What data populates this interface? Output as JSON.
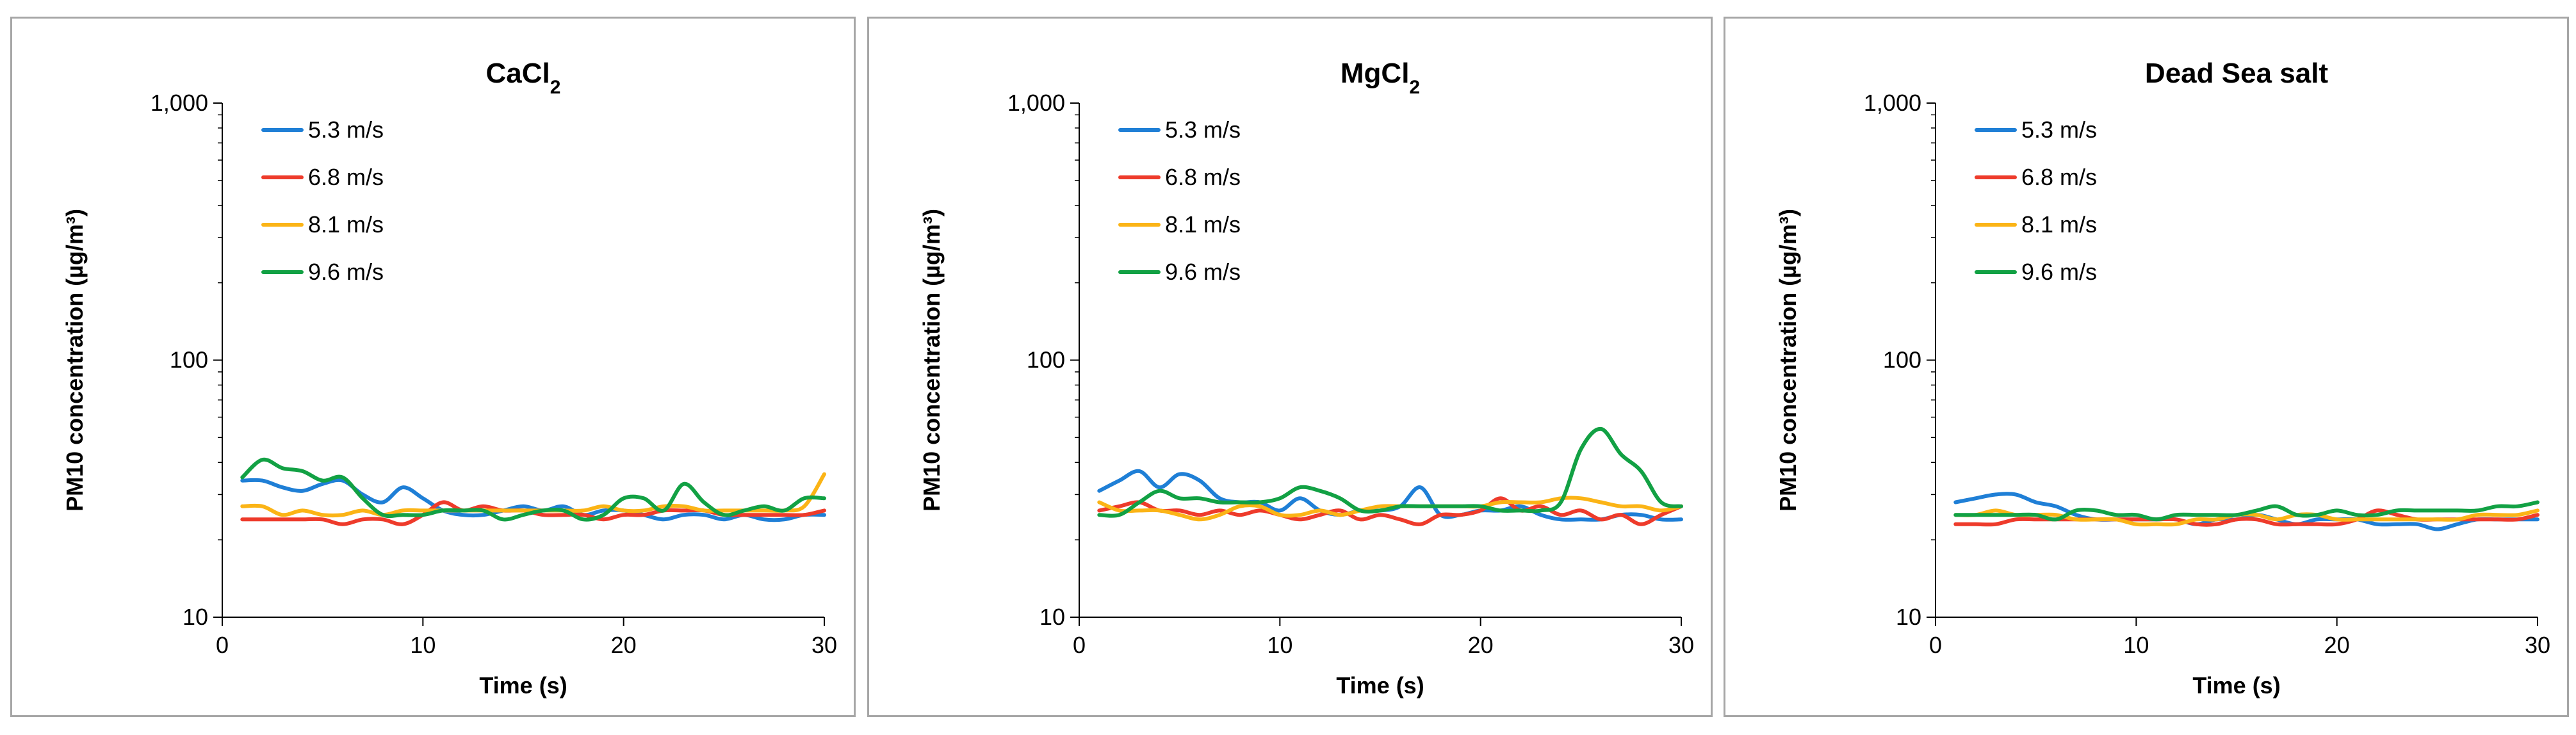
{
  "chart_data": [
    {
      "type": "line",
      "title": "CaCl",
      "title_subscript": "2",
      "xlabel": "Time (s)",
      "ylabel": "PM10 concentration (µg/m³)",
      "yscale": "log",
      "xlim": [
        0,
        30
      ],
      "ylim": [
        10,
        1000
      ],
      "xticks": [
        0,
        10,
        20,
        30
      ],
      "xtick_labels": [
        "0",
        "10",
        "20",
        "30"
      ],
      "yticks": [
        10,
        100,
        1000
      ],
      "ytick_labels": [
        "10",
        "100",
        "1,000"
      ],
      "legend_position": "top-left",
      "grid": false,
      "x": [
        1,
        2,
        3,
        4,
        5,
        6,
        7,
        8,
        9,
        10,
        11,
        12,
        13,
        14,
        15,
        16,
        17,
        18,
        19,
        20,
        21,
        22,
        23,
        24,
        25,
        26,
        27,
        28,
        29,
        30
      ],
      "series": [
        {
          "name": "5.3 m/s",
          "color": "#1f7fd6",
          "values": [
            34,
            34,
            32,
            31,
            33,
            34,
            30,
            28,
            32,
            29,
            26,
            25,
            25,
            26,
            27,
            26,
            27,
            25,
            26,
            26,
            25,
            24,
            25,
            25,
            24,
            25,
            24,
            24,
            25,
            25
          ]
        },
        {
          "name": "6.8 m/s",
          "color": "#ee3b2b",
          "values": [
            24,
            24,
            24,
            24,
            24,
            23,
            24,
            24,
            23,
            25,
            28,
            26,
            27,
            26,
            26,
            25,
            25,
            25,
            24,
            25,
            25,
            26,
            26,
            26,
            25,
            25,
            25,
            25,
            25,
            26
          ]
        },
        {
          "name": "8.1 m/s",
          "color": "#fbb416",
          "values": [
            27,
            27,
            25,
            26,
            25,
            25,
            26,
            25,
            26,
            26,
            26,
            26,
            26,
            26,
            26,
            26,
            26,
            26,
            27,
            26,
            26,
            27,
            27,
            26,
            26,
            26,
            26,
            26,
            27,
            36
          ]
        },
        {
          "name": "9.6 m/s",
          "color": "#12a144",
          "values": [
            35,
            41,
            38,
            37,
            34,
            35,
            29,
            25,
            25,
            25,
            26,
            26,
            26,
            24,
            25,
            26,
            26,
            24,
            25,
            29,
            29,
            26,
            33,
            28,
            25,
            26,
            27,
            26,
            29,
            29
          ]
        }
      ]
    },
    {
      "type": "line",
      "title": "MgCl",
      "title_subscript": "2",
      "xlabel": "Time (s)",
      "ylabel": "PM10 concentration (µg/m³)",
      "yscale": "log",
      "xlim": [
        0,
        30
      ],
      "ylim": [
        10,
        1000
      ],
      "xticks": [
        0,
        10,
        20,
        30
      ],
      "xtick_labels": [
        "0",
        "10",
        "20",
        "30"
      ],
      "yticks": [
        10,
        100,
        1000
      ],
      "ytick_labels": [
        "10",
        "100",
        "1,000"
      ],
      "legend_position": "top-left",
      "grid": false,
      "x": [
        1,
        2,
        3,
        4,
        5,
        6,
        7,
        8,
        9,
        10,
        11,
        12,
        13,
        14,
        15,
        16,
        17,
        18,
        19,
        20,
        21,
        22,
        23,
        24,
        25,
        26,
        27,
        28,
        29,
        30
      ],
      "series": [
        {
          "name": "5.3 m/s",
          "color": "#1f7fd6",
          "values": [
            31,
            34,
            37,
            32,
            36,
            34,
            29,
            28,
            28,
            26,
            29,
            26,
            25,
            26,
            26,
            27,
            32,
            25,
            25,
            26,
            26,
            27,
            25,
            24,
            24,
            24,
            25,
            25,
            24,
            24
          ]
        },
        {
          "name": "6.8 m/s",
          "color": "#ee3b2b",
          "values": [
            26,
            27,
            28,
            26,
            26,
            25,
            26,
            25,
            26,
            25,
            24,
            25,
            26,
            24,
            25,
            24,
            23,
            25,
            25,
            26,
            29,
            26,
            27,
            25,
            26,
            24,
            25,
            23,
            25,
            27
          ]
        },
        {
          "name": "8.1 m/s",
          "color": "#fbb416",
          "values": [
            28,
            26,
            26,
            26,
            25,
            24,
            25,
            27,
            27,
            25,
            25,
            26,
            25,
            26,
            27,
            27,
            27,
            27,
            27,
            27,
            28,
            28,
            28,
            29,
            29,
            28,
            27,
            27,
            26,
            27
          ]
        },
        {
          "name": "9.6 m/s",
          "color": "#12a144",
          "values": [
            25,
            25,
            28,
            31,
            29,
            29,
            28,
            28,
            28,
            29,
            32,
            31,
            29,
            26,
            26,
            27,
            27,
            27,
            27,
            27,
            26,
            26,
            26,
            28,
            45,
            54,
            43,
            37,
            28,
            27
          ]
        }
      ]
    },
    {
      "type": "line",
      "title": "Dead Sea salt",
      "title_subscript": "",
      "xlabel": "Time (s)",
      "ylabel": "PM10 concentration (µg/m³)",
      "yscale": "log",
      "xlim": [
        0,
        30
      ],
      "ylim": [
        10,
        1000
      ],
      "xticks": [
        0,
        10,
        20,
        30
      ],
      "xtick_labels": [
        "0",
        "10",
        "20",
        "30"
      ],
      "yticks": [
        10,
        100,
        1000
      ],
      "ytick_labels": [
        "10",
        "100",
        "1,000"
      ],
      "legend_position": "top-left",
      "grid": false,
      "x": [
        1,
        2,
        3,
        4,
        5,
        6,
        7,
        8,
        9,
        10,
        11,
        12,
        13,
        14,
        15,
        16,
        17,
        18,
        19,
        20,
        21,
        22,
        23,
        24,
        25,
        26,
        27,
        28,
        29,
        30
      ],
      "series": [
        {
          "name": "5.3 m/s",
          "color": "#1f7fd6",
          "values": [
            28,
            29,
            30,
            30,
            28,
            27,
            25,
            24,
            24,
            24,
            24,
            24,
            23,
            24,
            24,
            25,
            24,
            23,
            24,
            24,
            24,
            23,
            23,
            23,
            22,
            23,
            24,
            24,
            24,
            24
          ]
        },
        {
          "name": "6.8 m/s",
          "color": "#ee3b2b",
          "values": [
            23,
            23,
            23,
            24,
            24,
            24,
            24,
            24,
            24,
            24,
            24,
            24,
            23,
            23,
            24,
            24,
            23,
            23,
            23,
            23,
            24,
            26,
            25,
            24,
            24,
            24,
            24,
            24,
            24,
            25
          ]
        },
        {
          "name": "8.1 m/s",
          "color": "#fbb416",
          "values": [
            25,
            25,
            26,
            25,
            25,
            25,
            24,
            24,
            24,
            23,
            23,
            23,
            24,
            24,
            25,
            25,
            24,
            25,
            25,
            24,
            24,
            24,
            24,
            24,
            24,
            24,
            25,
            25,
            25,
            26
          ]
        },
        {
          "name": "9.6 m/s",
          "color": "#12a144",
          "values": [
            25,
            25,
            25,
            25,
            25,
            24,
            26,
            26,
            25,
            25,
            24,
            25,
            25,
            25,
            25,
            26,
            27,
            25,
            25,
            26,
            25,
            25,
            26,
            26,
            26,
            26,
            26,
            27,
            27,
            28
          ]
        }
      ]
    }
  ]
}
